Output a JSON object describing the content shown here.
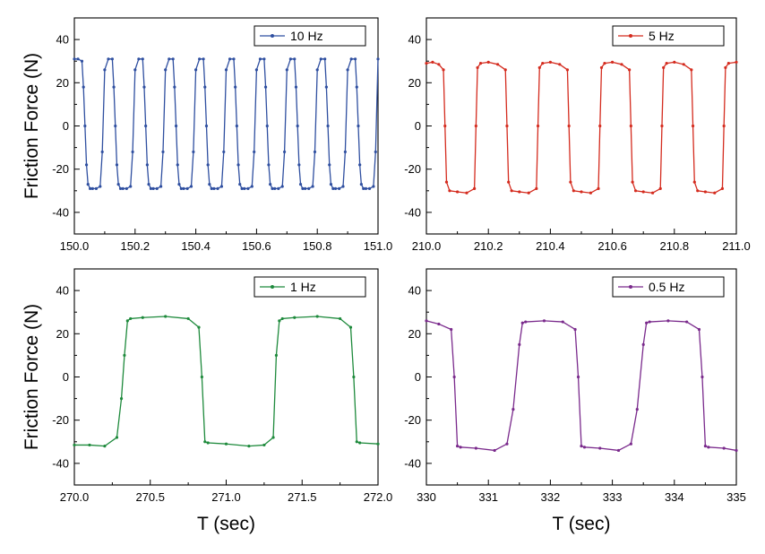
{
  "chart_data": [
    {
      "type": "line",
      "panel": "top-left",
      "xlabel": "",
      "ylabel": "Friction Force (N)",
      "xlim": [
        150.0,
        151.0
      ],
      "ylim": [
        -50,
        50
      ],
      "xticks": [
        150.0,
        150.2,
        150.4,
        150.6,
        150.8,
        151.0
      ],
      "xtick_labels": [
        "150.0",
        "150.2",
        "150.4",
        "150.6",
        "150.8",
        "151.0"
      ],
      "yticks": [
        -40,
        -20,
        0,
        20,
        40
      ],
      "ytick_labels": [
        "-40",
        "-20",
        "0",
        "20",
        "40"
      ],
      "legend_position": "top-right",
      "series": [
        {
          "name": "10 Hz",
          "color": "#2f4fa0",
          "x": [
            150.0,
            150.012,
            150.025,
            150.03,
            150.035,
            150.04,
            150.045,
            150.052,
            150.06,
            150.072,
            150.085,
            150.092,
            150.1,
            150.112,
            150.125,
            150.13,
            150.135,
            150.14,
            150.145,
            150.152,
            150.16,
            150.172,
            150.185,
            150.192,
            150.2,
            150.212,
            150.225,
            150.23,
            150.235,
            150.24,
            150.245,
            150.252,
            150.26,
            150.272,
            150.285,
            150.292,
            150.3,
            150.312,
            150.325,
            150.33,
            150.335,
            150.34,
            150.345,
            150.352,
            150.36,
            150.372,
            150.385,
            150.392,
            150.4,
            150.412,
            150.425,
            150.43,
            150.435,
            150.44,
            150.445,
            150.452,
            150.46,
            150.472,
            150.485,
            150.492,
            150.5,
            150.512,
            150.525,
            150.53,
            150.535,
            150.54,
            150.545,
            150.552,
            150.56,
            150.572,
            150.585,
            150.592,
            150.6,
            150.612,
            150.625,
            150.63,
            150.635,
            150.64,
            150.645,
            150.652,
            150.66,
            150.672,
            150.685,
            150.692,
            150.7,
            150.712,
            150.725,
            150.73,
            150.735,
            150.74,
            150.745,
            150.752,
            150.76,
            150.772,
            150.785,
            150.792,
            150.8,
            150.812,
            150.825,
            150.83,
            150.835,
            150.84,
            150.845,
            150.852,
            150.86,
            150.872,
            150.885,
            150.892,
            150.9,
            150.912,
            150.925,
            150.93,
            150.935,
            150.94,
            150.945,
            150.952,
            150.96,
            150.972,
            150.985,
            150.992,
            151.0
          ],
          "y": [
            31,
            31,
            30,
            18,
            0,
            -18,
            -27,
            -29,
            -29,
            -29,
            -28,
            -12,
            26,
            31,
            31,
            18,
            0,
            -18,
            -27,
            -29,
            -29,
            -29,
            -28,
            -12,
            26,
            31,
            31,
            18,
            0,
            -18,
            -27,
            -29,
            -29,
            -29,
            -28,
            -12,
            26,
            31,
            31,
            18,
            0,
            -18,
            -27,
            -29,
            -29,
            -29,
            -28,
            -12,
            26,
            31,
            31,
            18,
            0,
            -18,
            -27,
            -29,
            -29,
            -29,
            -28,
            -12,
            26,
            31,
            31,
            18,
            0,
            -18,
            -27,
            -29,
            -29,
            -29,
            -28,
            -12,
            26,
            31,
            31,
            18,
            0,
            -18,
            -27,
            -29,
            -29,
            -29,
            -28,
            -12,
            26,
            31,
            31,
            18,
            0,
            -18,
            -27,
            -29,
            -29,
            -29,
            -28,
            -12,
            26,
            31,
            31,
            18,
            0,
            -18,
            -27,
            -29,
            -29,
            -29,
            -28,
            -12,
            26,
            31,
            31,
            18,
            0,
            -18,
            -27,
            -29,
            -29,
            -29,
            -28,
            -12,
            31
          ]
        }
      ]
    },
    {
      "type": "line",
      "panel": "top-right",
      "xlabel": "",
      "ylabel": "",
      "xlim": [
        210.0,
        211.0
      ],
      "ylim": [
        -50,
        50
      ],
      "xticks": [
        210.0,
        210.2,
        210.4,
        210.6,
        210.8,
        211.0
      ],
      "xtick_labels": [
        "210.0",
        "210.2",
        "210.4",
        "210.6",
        "210.8",
        "211.0"
      ],
      "yticks": [
        -40,
        -20,
        0,
        20,
        40
      ],
      "ytick_labels": [
        "-40",
        "-20",
        "0",
        "20",
        "40"
      ],
      "legend_position": "top-right",
      "series": [
        {
          "name": "5 Hz",
          "color": "#d42b1e",
          "x": [
            210.0,
            210.02,
            210.04,
            210.055,
            210.06,
            210.065,
            210.075,
            210.1,
            210.13,
            210.155,
            210.16,
            210.165,
            210.175,
            210.2,
            210.23,
            210.255,
            210.26,
            210.265,
            210.275,
            210.3,
            210.33,
            210.355,
            210.36,
            210.365,
            210.375,
            210.4,
            210.43,
            210.455,
            210.46,
            210.465,
            210.475,
            210.5,
            210.53,
            210.555,
            210.56,
            210.565,
            210.575,
            210.6,
            210.63,
            210.655,
            210.66,
            210.665,
            210.675,
            210.7,
            210.73,
            210.755,
            210.76,
            210.765,
            210.775,
            210.8,
            210.83,
            210.855,
            210.86,
            210.865,
            210.875,
            210.9,
            210.93,
            210.955,
            210.96,
            210.965,
            210.975,
            211.0
          ],
          "y": [
            29,
            29.5,
            28.5,
            26,
            0,
            -26,
            -30,
            -30.5,
            -31,
            -29,
            0,
            27,
            29,
            29.5,
            28.5,
            26,
            0,
            -26,
            -30,
            -30.5,
            -31,
            -29,
            0,
            27,
            29,
            29.5,
            28.5,
            26,
            0,
            -26,
            -30,
            -30.5,
            -31,
            -29,
            0,
            27,
            29,
            29.5,
            28.5,
            26,
            0,
            -26,
            -30,
            -30.5,
            -31,
            -29,
            0,
            27,
            29,
            29.5,
            28.5,
            26,
            0,
            -26,
            -30,
            -30.5,
            -31,
            -29,
            0,
            27,
            29,
            29.5
          ]
        }
      ]
    },
    {
      "type": "line",
      "panel": "bottom-left",
      "xlabel": "T (sec)",
      "ylabel": "Friction Force (N)",
      "xlim": [
        270.0,
        272.0
      ],
      "ylim": [
        -50,
        50
      ],
      "xticks": [
        270.0,
        270.5,
        271.0,
        271.5,
        272.0
      ],
      "xtick_labels": [
        "270.0",
        "270.5",
        "271.0",
        "271.5",
        "272.0"
      ],
      "yticks": [
        -40,
        -20,
        0,
        20,
        40
      ],
      "ytick_labels": [
        "-40",
        "-20",
        "0",
        "20",
        "40"
      ],
      "legend_position": "top-right",
      "series": [
        {
          "name": "1 Hz",
          "color": "#1e8a3c",
          "x": [
            270.0,
            270.1,
            270.2,
            270.28,
            270.31,
            270.33,
            270.35,
            270.37,
            270.45,
            270.6,
            270.75,
            270.82,
            270.84,
            270.86,
            270.88,
            271.0,
            271.15,
            271.25,
            271.31,
            271.33,
            271.35,
            271.37,
            271.45,
            271.6,
            271.75,
            271.82,
            271.84,
            271.86,
            271.88,
            272.0
          ],
          "y": [
            -31.5,
            -31.5,
            -32,
            -28,
            -10,
            10,
            26,
            27,
            27.5,
            28,
            27,
            23,
            0,
            -30,
            -30.5,
            -31,
            -32,
            -31.5,
            -28,
            10,
            26,
            27,
            27.5,
            28,
            27,
            23,
            0,
            -30,
            -30.5,
            -31
          ]
        }
      ]
    },
    {
      "type": "line",
      "panel": "bottom-right",
      "xlabel": "T (sec)",
      "ylabel": "",
      "xlim": [
        330,
        335
      ],
      "ylim": [
        -50,
        50
      ],
      "xticks": [
        330,
        331,
        332,
        333,
        334,
        335
      ],
      "xtick_labels": [
        "330",
        "331",
        "332",
        "333",
        "334",
        "335"
      ],
      "yticks": [
        -40,
        -20,
        0,
        20,
        40
      ],
      "ytick_labels": [
        "-40",
        "-20",
        "0",
        "20",
        "40"
      ],
      "legend_position": "top-right",
      "series": [
        {
          "name": "0.5 Hz",
          "color": "#7a2a8c",
          "x": [
            330.0,
            330.2,
            330.4,
            330.45,
            330.5,
            330.55,
            330.8,
            331.1,
            331.3,
            331.4,
            331.5,
            331.55,
            331.6,
            331.9,
            332.2,
            332.4,
            332.45,
            332.5,
            332.55,
            332.8,
            333.1,
            333.3,
            333.4,
            333.5,
            333.55,
            333.6,
            333.9,
            334.2,
            334.4,
            334.45,
            334.5,
            334.55,
            334.8,
            335.0
          ],
          "y": [
            26,
            24.5,
            22,
            0,
            -32,
            -32.5,
            -33,
            -34,
            -31,
            -15,
            15,
            25,
            25.5,
            26,
            25.5,
            22,
            0,
            -32,
            -32.5,
            -33,
            -34,
            -31,
            -15,
            15,
            25,
            25.5,
            26,
            25.5,
            22,
            0,
            -32,
            -32.5,
            -33,
            -34
          ]
        }
      ]
    }
  ]
}
